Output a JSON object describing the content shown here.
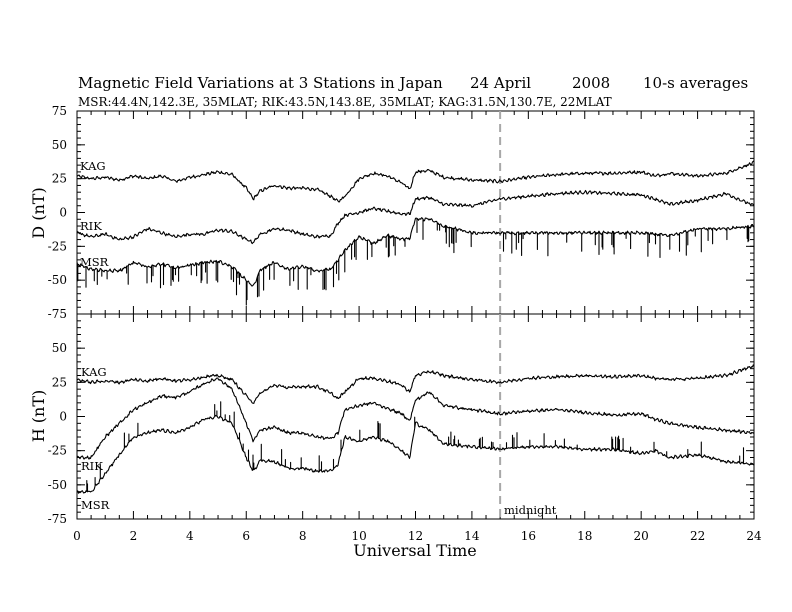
{
  "figure": {
    "title_left": "Magnetic Field Variations at 3 Stations in Japan",
    "title_date": "24  April",
    "title_year": "2008",
    "title_avg": "10-s averages",
    "subtitle": "MSR:44.4N,142.3E, 35MLAT;   RIK:43.5N,143.8E, 35MLAT;   KAG:31.5N,130.7E, 22MLAT",
    "midnight_label": "midnight"
  },
  "chart_data": [
    {
      "type": "line",
      "panel": "D",
      "ylabel": "D (nT)",
      "xlabel": "",
      "xlim": [
        0,
        24
      ],
      "ylim": [
        -75,
        75
      ],
      "yticks": [
        75,
        50,
        25,
        0,
        -25,
        -50,
        -75
      ],
      "xticks": [
        0,
        2,
        4,
        6,
        8,
        10,
        12,
        14,
        16,
        18,
        20,
        22,
        24
      ],
      "midnight_ut": 15,
      "series": [
        {
          "name": "KAG",
          "x": [
            0,
            0.5,
            1,
            1.5,
            2,
            2.5,
            3,
            3.5,
            4,
            4.5,
            5,
            5.5,
            6,
            6.25,
            6.5,
            7,
            7.5,
            8,
            8.5,
            9,
            9.25,
            9.5,
            10,
            10.5,
            11,
            11.5,
            11.8,
            12,
            12.5,
            13,
            14,
            15,
            16,
            17,
            18,
            19,
            20,
            20.5,
            21,
            22,
            23,
            24
          ],
          "y": [
            27,
            25,
            26,
            24,
            27,
            25,
            27,
            23,
            26,
            28,
            30,
            28,
            18,
            10,
            16,
            20,
            18,
            18,
            17,
            12,
            8,
            12,
            25,
            29,
            27,
            22,
            17,
            30,
            31,
            26,
            24,
            23,
            26,
            28,
            29,
            29,
            30,
            27,
            29,
            27,
            29,
            37
          ]
        },
        {
          "name": "RIK",
          "x": [
            0,
            0.5,
            1,
            1.5,
            2,
            2.5,
            3,
            3.5,
            4,
            4.5,
            5,
            5.5,
            6,
            6.25,
            6.5,
            7,
            7.5,
            8,
            8.5,
            9,
            9.25,
            9.5,
            10,
            10.5,
            11,
            11.5,
            11.8,
            12,
            12.5,
            13,
            14,
            15,
            16,
            17,
            18,
            19,
            20,
            20.5,
            21,
            22,
            23,
            24
          ],
          "y": [
            -15,
            -18,
            -16,
            -20,
            -18,
            -12,
            -15,
            -18,
            -16,
            -16,
            -13,
            -14,
            -20,
            -22,
            -16,
            -12,
            -13,
            -16,
            -18,
            -17,
            -8,
            -2,
            0,
            3,
            1,
            -1,
            -1,
            10,
            11,
            6,
            5,
            10,
            12,
            14,
            15,
            14,
            13,
            10,
            6,
            9,
            14,
            5
          ]
        },
        {
          "name": "MSR",
          "x": [
            0,
            0.5,
            1,
            1.5,
            2,
            2.5,
            3,
            3.5,
            4,
            4.5,
            5,
            5.5,
            6,
            6.25,
            6.5,
            7,
            7.5,
            8,
            8.5,
            9,
            9.25,
            9.5,
            10,
            10.5,
            11,
            11.5,
            11.8,
            12,
            12.5,
            13,
            14,
            15,
            16,
            17,
            18,
            19,
            20,
            20.5,
            21,
            22,
            23,
            24
          ],
          "y": [
            -38,
            -42,
            -43,
            -43,
            -37,
            -40,
            -38,
            -41,
            -39,
            -37,
            -36,
            -40,
            -50,
            -55,
            -42,
            -37,
            -42,
            -40,
            -43,
            -42,
            -35,
            -28,
            -18,
            -23,
            -17,
            -20,
            -19,
            -5,
            -5,
            -10,
            -15,
            -15,
            -15,
            -15,
            -15,
            -15,
            -15,
            -16,
            -17,
            -12,
            -12,
            -10
          ]
        }
      ]
    },
    {
      "type": "line",
      "panel": "H",
      "ylabel": "H (nT)",
      "xlabel": "Universal Time",
      "xlim": [
        0,
        24
      ],
      "ylim": [
        -75,
        75
      ],
      "yticks": [
        75,
        50,
        25,
        0,
        -25,
        -50,
        -75
      ],
      "xticks": [
        0,
        2,
        4,
        6,
        8,
        10,
        12,
        14,
        16,
        18,
        20,
        22,
        24
      ],
      "midnight_ut": 15,
      "series": [
        {
          "name": "KAG",
          "x": [
            0,
            0.5,
            1,
            1.5,
            2,
            2.5,
            3,
            3.5,
            4,
            4.5,
            5,
            5.5,
            6,
            6.25,
            6.5,
            7,
            7.5,
            8,
            8.5,
            9,
            9.25,
            9.5,
            10,
            10.5,
            11,
            11.5,
            11.8,
            12,
            12.5,
            13,
            14,
            15,
            16,
            17,
            18,
            19,
            20,
            20.5,
            21,
            22,
            23,
            24
          ],
          "y": [
            27,
            25,
            26,
            25,
            27,
            26,
            28,
            26,
            27,
            29,
            30,
            27,
            15,
            10,
            17,
            23,
            21,
            22,
            22,
            17,
            13,
            18,
            28,
            28,
            26,
            23,
            18,
            30,
            33,
            30,
            27,
            25,
            28,
            29,
            30,
            29,
            30,
            28,
            27,
            28,
            30,
            37
          ]
        },
        {
          "name": "RIK",
          "x": [
            0,
            0.5,
            1,
            1.5,
            2,
            2.5,
            3,
            3.5,
            4,
            4.5,
            5,
            5.5,
            6,
            6.25,
            6.5,
            7,
            7.5,
            8,
            8.5,
            9,
            9.25,
            9.5,
            10,
            10.5,
            11,
            11.5,
            11.8,
            12,
            12.5,
            13,
            14,
            15,
            16,
            17,
            18,
            19,
            20,
            20.5,
            21,
            22,
            23,
            24
          ],
          "y": [
            -30,
            -30,
            -15,
            -5,
            5,
            10,
            15,
            14,
            18,
            24,
            28,
            20,
            -5,
            -18,
            -10,
            -8,
            -12,
            -12,
            -15,
            -16,
            -12,
            5,
            8,
            10,
            6,
            2,
            -3,
            12,
            18,
            8,
            5,
            2,
            4,
            5,
            3,
            1,
            2,
            -2,
            -5,
            -8,
            -10,
            -12
          ]
        },
        {
          "name": "MSR",
          "x": [
            0,
            0.5,
            1,
            1.5,
            2,
            2.5,
            3,
            3.5,
            4,
            4.5,
            5,
            5.5,
            6,
            6.25,
            6.5,
            7,
            7.5,
            8,
            8.5,
            9,
            9.25,
            9.5,
            10,
            10.5,
            11,
            11.5,
            11.8,
            12,
            12.5,
            13,
            14,
            15,
            16,
            17,
            18,
            19,
            20,
            20.5,
            21,
            22,
            23,
            24
          ],
          "y": [
            -55,
            -55,
            -42,
            -28,
            -15,
            -12,
            -10,
            -12,
            -8,
            -2,
            0,
            -5,
            -30,
            -40,
            -32,
            -33,
            -38,
            -38,
            -40,
            -40,
            -35,
            -15,
            -18,
            -15,
            -18,
            -25,
            -30,
            -5,
            -10,
            -20,
            -22,
            -24,
            -22,
            -22,
            -24,
            -24,
            -27,
            -25,
            -30,
            -28,
            -33,
            -35
          ]
        }
      ]
    }
  ]
}
